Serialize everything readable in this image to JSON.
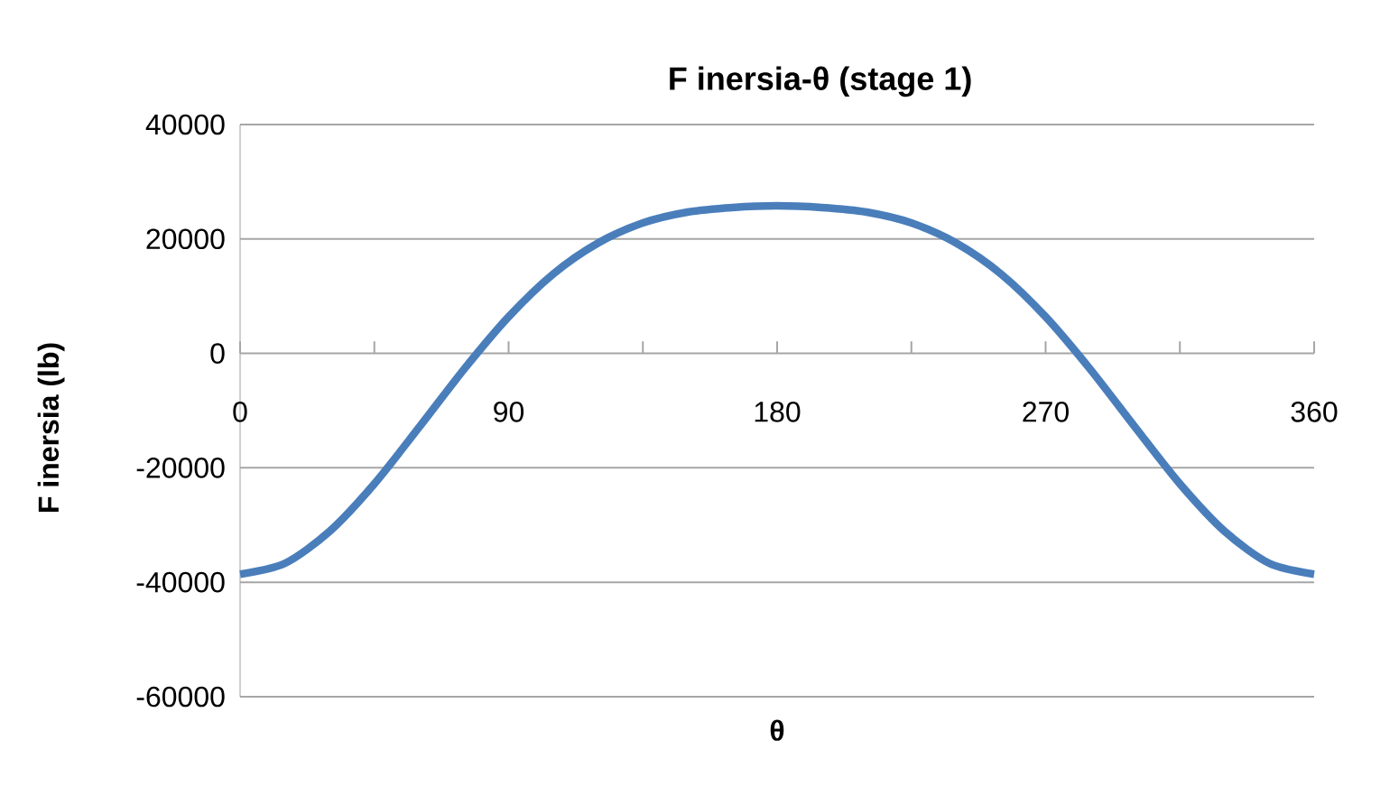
{
  "chart_data": {
    "type": "line",
    "title": "F inersia-θ (stage 1)",
    "xlabel": "θ",
    "ylabel": "F inersia (lb)",
    "x": [
      0,
      15,
      30,
      45,
      60,
      75,
      90,
      105,
      120,
      135,
      150,
      165,
      180,
      195,
      210,
      225,
      240,
      255,
      270,
      285,
      300,
      315,
      330,
      345,
      360
    ],
    "series": [
      {
        "color": "#4a7ebb",
        "values": [
          -38600,
          -36700,
          -31100,
          -22800,
          -12900,
          -2800,
          6400,
          13900,
          19300,
          22800,
          24700,
          25500,
          25800,
          25500,
          24700,
          22800,
          19300,
          13900,
          6400,
          -2800,
          -12900,
          -22800,
          -31100,
          -36700,
          -38600
        ]
      }
    ],
    "xlim": [
      0,
      360
    ],
    "xticks": [
      0,
      {
        "value": 45,
        "label": null
      },
      90,
      {
        "value": 135,
        "label": null
      },
      180,
      {
        "value": 225,
        "label": null
      },
      270,
      {
        "value": 315,
        "label": null
      },
      360
    ],
    "ylim": [
      -60000,
      40000
    ],
    "yticks": [
      -60000,
      -40000,
      -20000,
      0,
      20000,
      40000
    ],
    "grid": "y",
    "line_style": "solid"
  }
}
